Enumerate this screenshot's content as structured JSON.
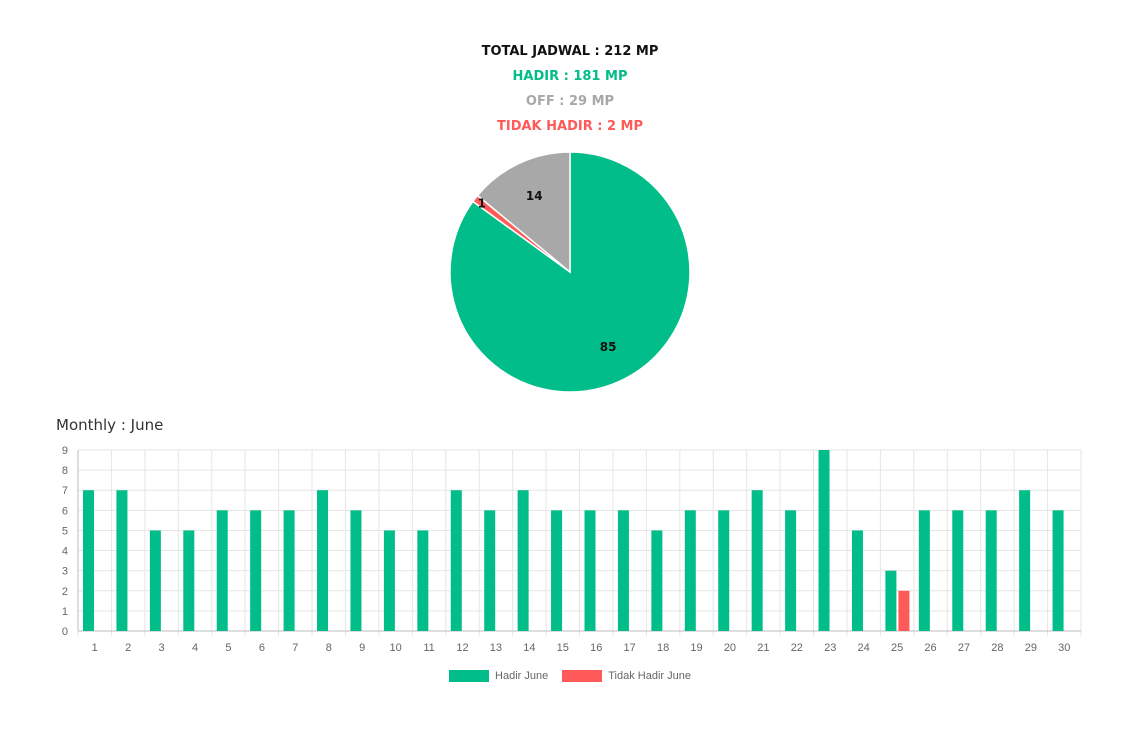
{
  "colors": {
    "hadir": "#00bd8a",
    "off": "#a8a8a8",
    "tidak": "#ff5a5a",
    "grid": "#e6e6e6",
    "tick": "#666666"
  },
  "summary": {
    "total": "TOTAL JADWAL : 212 MP",
    "hadir": "HADIR : 181 MP",
    "off": "OFF : 29 MP",
    "tidak_hadir": "TIDAK HADIR : 2 MP"
  },
  "monthly_title": "Monthly : June",
  "chart_data": [
    {
      "type": "pie",
      "slices": [
        {
          "name": "Hadir",
          "value": 85,
          "label": "85",
          "color": "#00bd8a"
        },
        {
          "name": "Tidak Hadir",
          "value": 1,
          "label": "1",
          "color": "#ff5a5a"
        },
        {
          "name": "Off",
          "value": 14,
          "label": "14",
          "color": "#a8a8a8"
        }
      ]
    },
    {
      "type": "bar",
      "categories": [
        "1",
        "2",
        "3",
        "4",
        "5",
        "6",
        "7",
        "8",
        "9",
        "10",
        "11",
        "12",
        "13",
        "14",
        "15",
        "16",
        "17",
        "18",
        "19",
        "20",
        "21",
        "22",
        "23",
        "24",
        "25",
        "26",
        "27",
        "28",
        "29",
        "30"
      ],
      "series": [
        {
          "name": "Hadir June",
          "color": "#00bd8a",
          "values": [
            7,
            7,
            5,
            5,
            6,
            6,
            6,
            7,
            6,
            5,
            5,
            7,
            6,
            7,
            6,
            6,
            6,
            5,
            6,
            6,
            7,
            6,
            9,
            5,
            3,
            6,
            6,
            6,
            7,
            6
          ]
        },
        {
          "name": "Tidak Hadir June",
          "color": "#ff5a5a",
          "values": [
            0,
            0,
            0,
            0,
            0,
            0,
            0,
            0,
            0,
            0,
            0,
            0,
            0,
            0,
            0,
            0,
            0,
            0,
            0,
            0,
            0,
            0,
            0,
            0,
            2,
            0,
            0,
            0,
            0,
            0
          ]
        }
      ],
      "ylim": [
        0,
        9
      ],
      "yticks": [
        "0",
        "1",
        "2",
        "3",
        "4",
        "5",
        "6",
        "7",
        "8",
        "9"
      ],
      "grid": true,
      "legend": "bottom"
    }
  ]
}
